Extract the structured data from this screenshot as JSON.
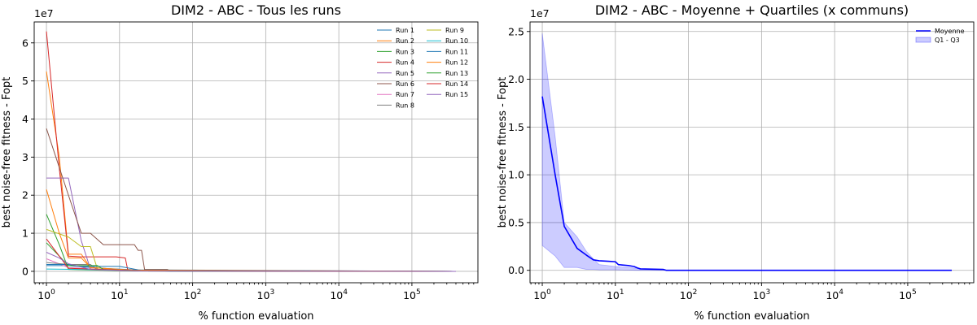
{
  "chart_data": [
    {
      "type": "line",
      "title": "DIM2 - ABC - Tous les runs",
      "xlabel": "% function evaluation",
      "ylabel": "best noise-free fitness - Fopt",
      "xscale": "log",
      "xlim": [
        0.68,
        800000
      ],
      "ylim": [
        -3000000,
        65500000
      ],
      "y_offset_text": "1e7",
      "x_ticks": [
        {
          "value": 1,
          "base": "10",
          "exp": "0"
        },
        {
          "value": 10,
          "base": "10",
          "exp": "1"
        },
        {
          "value": 100,
          "base": "10",
          "exp": "2"
        },
        {
          "value": 1000,
          "base": "10",
          "exp": "3"
        },
        {
          "value": 10000,
          "base": "10",
          "exp": "4"
        },
        {
          "value": 100000,
          "base": "10",
          "exp": "5"
        }
      ],
      "y_ticks": [
        {
          "value": 0,
          "label": "0"
        },
        {
          "value": 10000000,
          "label": "1"
        },
        {
          "value": 20000000,
          "label": "2"
        },
        {
          "value": 30000000,
          "label": "3"
        },
        {
          "value": 40000000,
          "label": "4"
        },
        {
          "value": 50000000,
          "label": "5"
        },
        {
          "value": 60000000,
          "label": "6"
        }
      ],
      "grid": true,
      "legend_position": "top-right",
      "legend_columns": 2,
      "series": [
        {
          "name": "Run 1",
          "color": "#1f77b4",
          "points": [
            [
              1,
              1500000
            ],
            [
              2,
              1500000
            ],
            [
              3,
              1200000
            ],
            [
              6,
              800000
            ],
            [
              20,
              300000
            ],
            [
              50,
              50000
            ],
            [
              400000,
              0
            ]
          ]
        },
        {
          "name": "Run 2",
          "color": "#ff7f0e",
          "points": [
            [
              1,
              52500000
            ],
            [
              1.5,
              30000000
            ],
            [
              2,
              4500000
            ],
            [
              3,
              4500000
            ],
            [
              4,
              1000000
            ],
            [
              10,
              500000
            ],
            [
              30,
              100000
            ],
            [
              400000,
              0
            ]
          ]
        },
        {
          "name": "Run 3",
          "color": "#2ca02c",
          "points": [
            [
              1,
              15000000
            ],
            [
              1.5,
              7000000
            ],
            [
              2,
              500000
            ],
            [
              5,
              300000
            ],
            [
              20,
              100000
            ],
            [
              400000,
              0
            ]
          ]
        },
        {
          "name": "Run 4",
          "color": "#d62728",
          "points": [
            [
              1,
              63000000
            ],
            [
              1.5,
              27000000
            ],
            [
              2,
              4000000
            ],
            [
              3,
              3800000
            ],
            [
              9,
              3800000
            ],
            [
              12,
              3500000
            ],
            [
              13,
              200000
            ],
            [
              400000,
              0
            ]
          ]
        },
        {
          "name": "Run 5",
          "color": "#9467bd",
          "points": [
            [
              1,
              24500000
            ],
            [
              2,
              24500000
            ],
            [
              3,
              8000000
            ],
            [
              4,
              600000
            ],
            [
              10,
              300000
            ],
            [
              30,
              100000
            ],
            [
              400000,
              0
            ]
          ]
        },
        {
          "name": "Run 6",
          "color": "#8c564b",
          "points": [
            [
              1,
              37500000
            ],
            [
              2,
              20000000
            ],
            [
              3,
              10000000
            ],
            [
              4,
              10000000
            ],
            [
              6,
              7000000
            ],
            [
              16,
              7000000
            ],
            [
              18,
              5500000
            ],
            [
              20,
              5500000
            ],
            [
              22,
              500000
            ],
            [
              45,
              500000
            ],
            [
              50,
              100000
            ],
            [
              400000,
              0
            ]
          ]
        },
        {
          "name": "Run 7",
          "color": "#e377c2",
          "points": [
            [
              1,
              3300000
            ],
            [
              2,
              1000000
            ],
            [
              5,
              500000
            ],
            [
              15,
              200000
            ],
            [
              400000,
              0
            ]
          ]
        },
        {
          "name": "Run 8",
          "color": "#7f7f7f",
          "points": [
            [
              1,
              2300000
            ],
            [
              2,
              1800000
            ],
            [
              4,
              1800000
            ],
            [
              5,
              400000
            ],
            [
              20,
              100000
            ],
            [
              400000,
              0
            ]
          ]
        },
        {
          "name": "Run 9",
          "color": "#bcbd22",
          "points": [
            [
              1,
              11000000
            ],
            [
              2,
              9000000
            ],
            [
              3,
              6500000
            ],
            [
              4,
              6500000
            ],
            [
              5,
              500000
            ],
            [
              20,
              200000
            ],
            [
              400000,
              0
            ]
          ]
        },
        {
          "name": "Run 10",
          "color": "#17becf",
          "points": [
            [
              1,
              600000
            ],
            [
              3,
              500000
            ],
            [
              10,
              300000
            ],
            [
              400000,
              0
            ]
          ]
        },
        {
          "name": "Run 11",
          "color": "#1f77b4",
          "points": [
            [
              1,
              1800000
            ],
            [
              2,
              1800000
            ],
            [
              3,
              1300000
            ],
            [
              5,
              1300000
            ],
            [
              10,
              1300000
            ],
            [
              18,
              400000
            ],
            [
              400000,
              0
            ]
          ]
        },
        {
          "name": "Run 12",
          "color": "#ff7f0e",
          "points": [
            [
              1,
              21500000
            ],
            [
              1.5,
              10000000
            ],
            [
              2,
              3500000
            ],
            [
              3,
              3500000
            ],
            [
              4,
              1000000
            ],
            [
              15,
              300000
            ],
            [
              400000,
              0
            ]
          ]
        },
        {
          "name": "Run 13",
          "color": "#2ca02c",
          "points": [
            [
              1,
              7500000
            ],
            [
              2,
              1500000
            ],
            [
              5,
              1500000
            ],
            [
              6,
              500000
            ],
            [
              20,
              100000
            ],
            [
              400000,
              0
            ]
          ]
        },
        {
          "name": "Run 14",
          "color": "#d62728",
          "points": [
            [
              1,
              8500000
            ],
            [
              2,
              800000
            ],
            [
              6,
              500000
            ],
            [
              20,
              100000
            ],
            [
              400000,
              0
            ]
          ]
        },
        {
          "name": "Run 15",
          "color": "#9467bd",
          "points": [
            [
              1,
              5000000
            ],
            [
              1.5,
              3500000
            ],
            [
              2,
              2000000
            ],
            [
              4,
              500000
            ],
            [
              20,
              100000
            ],
            [
              400000,
              0
            ]
          ]
        }
      ]
    },
    {
      "type": "line",
      "title": "DIM2 - ABC  - Moyenne + Quartiles (x communs)",
      "xlabel": "% function evaluation",
      "ylabel": "best noise-free fitness - Fopt",
      "xscale": "log",
      "xlim": [
        0.68,
        800000
      ],
      "ylim": [
        -1300000,
        26000000
      ],
      "y_offset_text": "1e7",
      "x_ticks": [
        {
          "value": 1,
          "base": "10",
          "exp": "0"
        },
        {
          "value": 10,
          "base": "10",
          "exp": "1"
        },
        {
          "value": 100,
          "base": "10",
          "exp": "2"
        },
        {
          "value": 1000,
          "base": "10",
          "exp": "3"
        },
        {
          "value": 10000,
          "base": "10",
          "exp": "4"
        },
        {
          "value": 100000,
          "base": "10",
          "exp": "5"
        }
      ],
      "y_ticks": [
        {
          "value": 0,
          "label": "0.0"
        },
        {
          "value": 5000000,
          "label": "0.5"
        },
        {
          "value": 10000000,
          "label": "1.0"
        },
        {
          "value": 15000000,
          "label": "1.5"
        },
        {
          "value": 20000000,
          "label": "2.0"
        },
        {
          "value": 25000000,
          "label": "2.5"
        }
      ],
      "grid": true,
      "legend_position": "top-right",
      "series": [
        {
          "name": "Moyenne",
          "color": "#0000ff",
          "points": [
            [
              1,
              18200000
            ],
            [
              1.5,
              10000000
            ],
            [
              2,
              4600000
            ],
            [
              3,
              2300000
            ],
            [
              4,
              1600000
            ],
            [
              5,
              1100000
            ],
            [
              6,
              1000000
            ],
            [
              8,
              950000
            ],
            [
              10,
              900000
            ],
            [
              11,
              600000
            ],
            [
              15,
              500000
            ],
            [
              18,
              400000
            ],
            [
              20,
              250000
            ],
            [
              22,
              150000
            ],
            [
              45,
              100000
            ],
            [
              50,
              0
            ],
            [
              400000,
              0
            ]
          ]
        }
      ],
      "band": {
        "name": "Q1 - Q3",
        "color": "#0000ff",
        "x": [
          1,
          1.5,
          2,
          3,
          4,
          5,
          6,
          8,
          10,
          15,
          20,
          25,
          50,
          400000
        ],
        "q1": [
          2600000,
          1500000,
          300000,
          300000,
          100000,
          100000,
          50000,
          50000,
          50000,
          20000,
          0,
          0,
          0,
          0
        ],
        "q3": [
          24800000,
          14000000,
          5000000,
          3500000,
          2000000,
          1200000,
          600000,
          500000,
          400000,
          300000,
          200000,
          100000,
          30000,
          0
        ]
      }
    }
  ]
}
